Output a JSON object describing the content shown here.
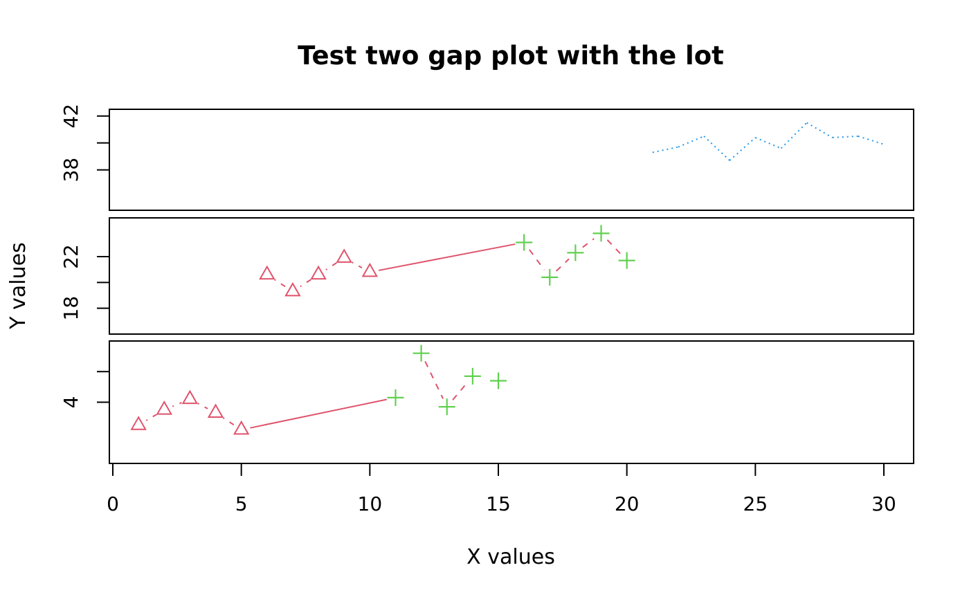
{
  "chart_data": {
    "type": "line",
    "title": "Test two gap plot with the lot",
    "xlabel": "X values",
    "ylabel": "Y values",
    "xlim": [
      0,
      30
    ],
    "x_ticks": [
      0,
      5,
      10,
      15,
      20,
      25,
      30
    ],
    "gaps": [
      [
        8,
        16
      ],
      [
        25,
        35
      ]
    ],
    "panels": [
      {
        "name": "lower",
        "ylim": [
          0,
          8
        ],
        "y_ticks": [
          4
        ],
        "minor_ticks": [
          6
        ]
      },
      {
        "name": "middle",
        "ylim": [
          16,
          25
        ],
        "y_ticks": [
          18,
          22
        ],
        "minor_ticks": [
          20
        ]
      },
      {
        "name": "upper",
        "ylim": [
          35,
          42.5
        ],
        "y_ticks": [
          38,
          42
        ],
        "minor_ticks": [
          40
        ]
      }
    ],
    "series": [
      {
        "color": "#DF536B",
        "marker": "triangle",
        "line": "dashdot",
        "x": [
          1,
          2,
          3,
          4,
          5,
          6,
          7,
          8,
          9,
          10
        ],
        "y": [
          2.5,
          3.5,
          4.2,
          3.3,
          2.2,
          20.6,
          19.3,
          20.6,
          21.9,
          20.8
        ]
      },
      {
        "color": "#61D04F",
        "marker": "plus",
        "line": "none",
        "x": [
          11,
          12,
          13,
          14,
          15,
          16,
          17,
          18,
          19,
          20
        ],
        "y": [
          4.3,
          7.2,
          3.7,
          5.7,
          5.4,
          23.1,
          20.4,
          22.3,
          23.8,
          21.7
        ]
      },
      {
        "color": "#2297E6",
        "marker": "none",
        "line": "dotted",
        "x": [
          21,
          22,
          23,
          24,
          25,
          26,
          27,
          28,
          29,
          30
        ],
        "y": [
          39.3,
          39.7,
          40.5,
          38.7,
          40.4,
          39.6,
          41.5,
          40.4,
          40.5,
          39.9
        ]
      }
    ],
    "connectors": [
      {
        "color": "#DF536B",
        "line": "solid",
        "x": [
          5,
          11
        ],
        "y": [
          2.2,
          4.3
        ]
      },
      {
        "color": "#DF536B",
        "line": "solid",
        "x": [
          10,
          16
        ],
        "y": [
          20.8,
          23.1
        ]
      },
      {
        "color": "#DF536B",
        "line": "dashed",
        "x": [
          12,
          13
        ],
        "y": [
          7.2,
          3.7
        ]
      },
      {
        "color": "#DF536B",
        "line": "dashed",
        "x": [
          13,
          14
        ],
        "y": [
          3.7,
          5.7
        ]
      },
      {
        "color": "#DF536B",
        "line": "dashed",
        "x": [
          16,
          17
        ],
        "y": [
          23.1,
          20.4
        ]
      },
      {
        "color": "#DF536B",
        "line": "dashed",
        "x": [
          17,
          18
        ],
        "y": [
          20.4,
          22.3
        ]
      },
      {
        "color": "#DF536B",
        "line": "dashed",
        "x": [
          18,
          19
        ],
        "y": [
          22.3,
          23.8
        ]
      },
      {
        "color": "#DF536B",
        "line": "dashed",
        "x": [
          19,
          20
        ],
        "y": [
          23.8,
          21.7
        ]
      }
    ],
    "grid": false,
    "legend": "none"
  }
}
